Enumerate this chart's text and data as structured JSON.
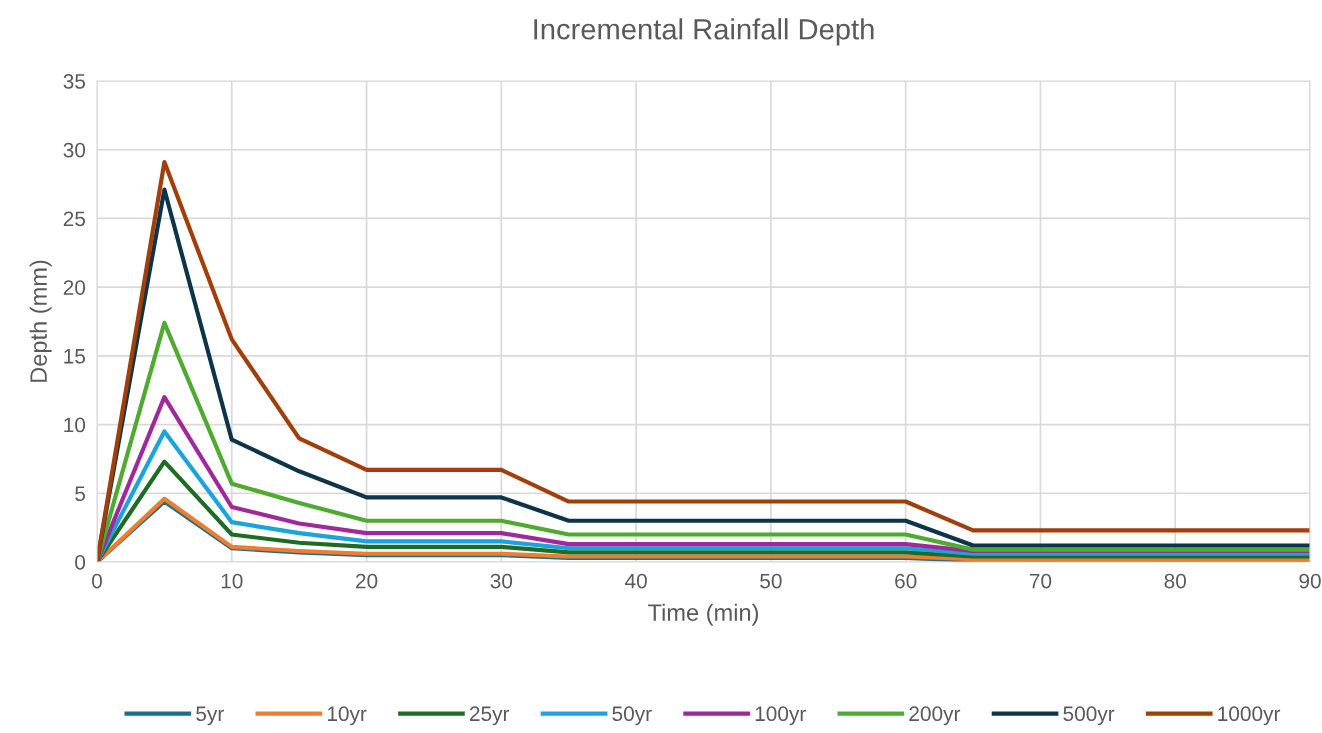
{
  "chart_data": {
    "type": "line",
    "title": "Incremental Rainfall Depth",
    "xlabel": "Time (min)",
    "ylabel": "Depth (mm)",
    "x": [
      0,
      5,
      10,
      15,
      20,
      30,
      35,
      60,
      65,
      90
    ],
    "series": [
      {
        "name": "5yr",
        "color": "#1f6f8b",
        "values": [
          0,
          4.4,
          1.0,
          0.7,
          0.5,
          0.5,
          0.3,
          0.3,
          0.1,
          0.1
        ]
      },
      {
        "name": "10yr",
        "color": "#ed7d31",
        "values": [
          0,
          4.6,
          1.1,
          0.8,
          0.6,
          0.6,
          0.4,
          0.4,
          0.2,
          0.2
        ]
      },
      {
        "name": "25yr",
        "color": "#1e6b24",
        "values": [
          0,
          7.3,
          2.0,
          1.4,
          1.1,
          1.1,
          0.7,
          0.7,
          0.4,
          0.4
        ]
      },
      {
        "name": "50yr",
        "color": "#1aa3dc",
        "values": [
          0,
          9.5,
          2.9,
          2.1,
          1.5,
          1.5,
          1.0,
          1.0,
          0.6,
          0.6
        ]
      },
      {
        "name": "100yr",
        "color": "#a0289a",
        "values": [
          0,
          12.0,
          4.0,
          2.8,
          2.1,
          2.1,
          1.3,
          1.3,
          0.8,
          0.8
        ]
      },
      {
        "name": "200yr",
        "color": "#4eab2f",
        "values": [
          0,
          17.4,
          5.7,
          4.3,
          3.0,
          3.0,
          2.0,
          2.0,
          0.9,
          0.9
        ]
      },
      {
        "name": "500yr",
        "color": "#0d3549",
        "values": [
          0,
          27.1,
          8.9,
          6.6,
          4.7,
          4.7,
          3.0,
          3.0,
          1.2,
          1.2
        ]
      },
      {
        "name": "1000yr",
        "color": "#a13f0b",
        "values": [
          0,
          29.1,
          16.2,
          9.0,
          6.7,
          6.7,
          4.4,
          4.4,
          2.3,
          2.3
        ]
      }
    ],
    "xlim": [
      0,
      90
    ],
    "xticks": [
      0,
      10,
      20,
      30,
      40,
      50,
      60,
      70,
      80,
      90
    ],
    "ylim": [
      0,
      35
    ],
    "yticks": [
      0,
      5,
      10,
      15,
      20,
      25,
      30,
      35
    ],
    "grid": true,
    "legend": "bottom",
    "line_style": "solid"
  }
}
